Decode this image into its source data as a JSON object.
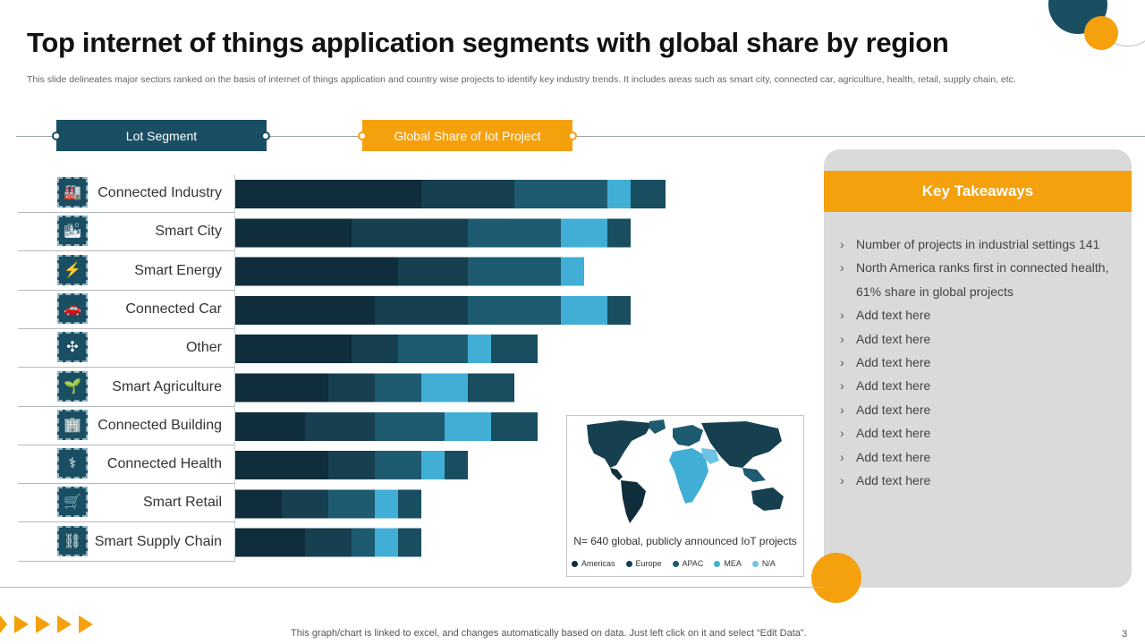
{
  "slide": {
    "title": "Top internet of things application segments with global share by region",
    "description": "This slide delineates major sectors ranked on the basis of internet of things application and country wise projects to identify key industry trends. It includes areas such as smart city, connected car, agriculture, health, retail, supply chain, etc.",
    "footnote": "This graph/chart is linked to excel,  and changes automatically based on data. Just left click on it and select “Edit Data”.",
    "page_number": "3"
  },
  "headers": {
    "segment": "Lot Segment",
    "share": "Global Share of Iot Project"
  },
  "colors": {
    "brand_teal": "#1a4f63",
    "accent_orange": "#f5a00d"
  },
  "segments": [
    {
      "label": "Connected Industry",
      "icon": "factory-icon",
      "glyph": "🏭"
    },
    {
      "label": "Smart City",
      "icon": "city-building-icon",
      "glyph": "🏙"
    },
    {
      "label": "Smart Energy",
      "icon": "energy-icon",
      "glyph": "⚡"
    },
    {
      "label": "Connected Car",
      "icon": "car-icon",
      "glyph": "🚗"
    },
    {
      "label": "Other",
      "icon": "network-icon",
      "glyph": "✣"
    },
    {
      "label": "Smart Agriculture",
      "icon": "agriculture-icon",
      "glyph": "🌱"
    },
    {
      "label": "Connected Building",
      "icon": "building-globe-icon",
      "glyph": "🏢"
    },
    {
      "label": "Connected Health",
      "icon": "stethoscope-icon",
      "glyph": "⚕"
    },
    {
      "label": "Smart Retail",
      "icon": "shopping-cart-icon",
      "glyph": "🛒"
    },
    {
      "label": "Smart Supply Chain",
      "icon": "supply-chain-icon",
      "glyph": "⛓"
    }
  ],
  "chart_data": {
    "type": "bar",
    "orientation": "horizontal",
    "stacked": true,
    "categories": [
      "Connected Industry",
      "Smart City",
      "Smart Energy",
      "Connected Car",
      "Other",
      "Smart Agriculture",
      "Connected Building",
      "Connected Health",
      "Smart Retail",
      "Smart Supply Chain"
    ],
    "series": [
      {
        "name": "Americas",
        "color": "#0f2d3a",
        "values": [
          8,
          5,
          7,
          6,
          5,
          4,
          3,
          4,
          2,
          3
        ]
      },
      {
        "name": "Europe",
        "color": "#163f50",
        "values": [
          4,
          5,
          3,
          4,
          2,
          2,
          3,
          2,
          2,
          2
        ]
      },
      {
        "name": "APAC",
        "color": "#1e5a70",
        "values": [
          4,
          4,
          4,
          4,
          3,
          2,
          3,
          2,
          2,
          1
        ]
      },
      {
        "name": "MEA",
        "color": "#41aed6",
        "values": [
          1,
          2,
          1,
          2,
          1,
          2,
          2,
          1,
          1,
          1
        ]
      },
      {
        "name": "N/A",
        "color": "#194d60",
        "values": [
          1.5,
          1,
          0,
          1,
          2,
          2,
          2,
          1,
          1,
          1
        ]
      }
    ],
    "legend_position": "bottom",
    "xlim": [
      0,
      18.5
    ]
  },
  "map": {
    "caption": "N= 640 global, publicly announced IoT projects",
    "legend": [
      {
        "name": "Americas",
        "color": "#0f2d3a"
      },
      {
        "name": "Europe",
        "color": "#163f50"
      },
      {
        "name": "APAC",
        "color": "#1e5a70"
      },
      {
        "name": "MEA",
        "color": "#41aed6"
      },
      {
        "name": "N/A",
        "color": "#6cc3e3"
      }
    ]
  },
  "takeaways": {
    "title": "Key Takeaways",
    "items": [
      "Number of projects in industrial settings 141",
      "North America ranks first in connected health, 61% share in global projects",
      "Add text here",
      "Add text here",
      "Add text here",
      "Add text here",
      "Add text here",
      "Add text here",
      "Add text here",
      "Add text here"
    ]
  }
}
